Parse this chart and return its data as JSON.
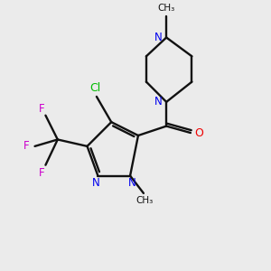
{
  "background_color": "#ebebeb",
  "bond_color": "#111111",
  "N_color": "#0000ee",
  "O_color": "#ee0000",
  "F_color": "#cc00cc",
  "Cl_color": "#00bb00",
  "figsize": [
    3.0,
    3.0
  ],
  "dpi": 100,
  "xlim": [
    0,
    10
  ],
  "ylim": [
    0,
    10
  ]
}
